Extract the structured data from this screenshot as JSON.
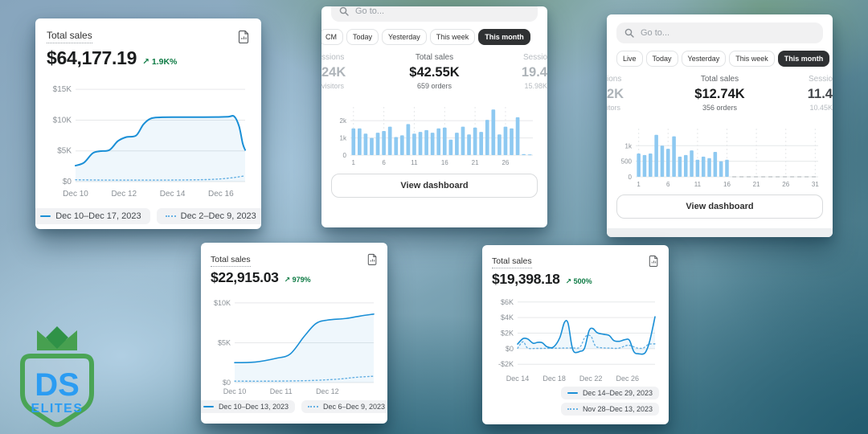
{
  "palette": {
    "line": "#1a8fd6",
    "dot": "#69b2e4",
    "bar": "#8ec9f1",
    "fill": "rgba(26,144,216,0.07)",
    "grid": "#e6e8ea",
    "zero_dash": "#c4c8cc",
    "green": "#0c7a43",
    "tab_active_bg": "#2f3133"
  },
  "logo": {
    "top": "DS",
    "bottom": "ELITES"
  },
  "cards": {
    "c1": {
      "title": "Total sales",
      "value": "$64,177.19",
      "delta_arrow": "↗",
      "delta": "1.9K%",
      "legend": [
        {
          "style": "solid",
          "label": "Dec 10–Dec 17, 2023"
        },
        {
          "style": "dotted",
          "label": "Dec 2–Dec 9, 2023"
        }
      ],
      "chart": {
        "type": "line",
        "lw": 2,
        "pad": [
          36,
          6,
          6,
          20
        ],
        "xlim": [
          0,
          7
        ],
        "ylim": [
          0,
          16200
        ],
        "yticks": [
          {
            "v": 15000,
            "label": "$15K"
          },
          {
            "v": 10000,
            "label": "$10K"
          },
          {
            "v": 5000,
            "label": "$5K"
          },
          {
            "v": 0,
            "label": "$0"
          }
        ],
        "xticks": [
          {
            "v": 0,
            "label": "Dec 10"
          },
          {
            "v": 2,
            "label": "Dec 12"
          },
          {
            "v": 4,
            "label": "Dec 14"
          },
          {
            "v": 6,
            "label": "Dec 16"
          }
        ],
        "series": [
          {
            "style": "dotted",
            "points": [
              [
                0,
                300
              ],
              [
                1,
                260
              ],
              [
                2,
                250
              ],
              [
                3,
                250
              ],
              [
                4,
                260
              ],
              [
                5,
                300
              ],
              [
                5.6,
                360
              ],
              [
                6.1,
                480
              ],
              [
                6.6,
                700
              ],
              [
                7,
                950
              ]
            ]
          },
          {
            "style": "solid",
            "fill": true,
            "points": [
              [
                0,
                2600
              ],
              [
                0.35,
                3100
              ],
              [
                0.7,
                4600
              ],
              [
                1,
                4950
              ],
              [
                1.4,
                5150
              ],
              [
                1.75,
                6600
              ],
              [
                2.1,
                7250
              ],
              [
                2.5,
                7500
              ],
              [
                2.8,
                9300
              ],
              [
                3.1,
                10250
              ],
              [
                3.5,
                10450
              ],
              [
                4.2,
                10480
              ],
              [
                5,
                10480
              ],
              [
                5.8,
                10500
              ],
              [
                6.3,
                10550
              ],
              [
                6.55,
                10600
              ],
              [
                6.75,
                9000
              ],
              [
                6.9,
                6200
              ],
              [
                7,
                5150
              ]
            ]
          }
        ]
      }
    },
    "c2": {
      "search_placeholder": "Go to...",
      "tabs": [
        {
          "label": "CM"
        },
        {
          "label": "Today"
        },
        {
          "label": "Yesterday"
        },
        {
          "label": "This week"
        },
        {
          "label": "This month",
          "active": true
        }
      ],
      "metrics": {
        "left": {
          "label": "ssions",
          "value": "24K",
          "sub": "visitors"
        },
        "center": {
          "label": "Total sales",
          "value": "$42.55K",
          "sub": "659 orders"
        },
        "right": {
          "label": "Sessio",
          "value": "19.4",
          "sub": "15.98K"
        }
      },
      "button": "View dashboard",
      "chart": {
        "type": "bar",
        "slots": 30,
        "pad": [
          24,
          8,
          6,
          14
        ],
        "ylim": [
          0,
          2800
        ],
        "vgrid": true,
        "yticks": [
          {
            "v": 2000,
            "label": "2k"
          },
          {
            "v": 1000,
            "label": "1k"
          },
          {
            "v": 0,
            "label": "0"
          }
        ],
        "xticks": [
          {
            "v": 1,
            "label": "1"
          },
          {
            "v": 6,
            "label": "6"
          },
          {
            "v": 11,
            "label": "11"
          },
          {
            "v": 16,
            "label": "16"
          },
          {
            "v": 21,
            "label": "21"
          },
          {
            "v": 26,
            "label": "26"
          }
        ],
        "values": [
          1550,
          1550,
          1250,
          1000,
          1300,
          1400,
          1650,
          1050,
          1150,
          1800,
          1250,
          1350,
          1450,
          1300,
          1550,
          1600,
          900,
          1300,
          1650,
          1200,
          1600,
          1350,
          2050,
          2650,
          1200,
          1650,
          1550,
          2200,
          60,
          40
        ]
      }
    },
    "c3": {
      "search_placeholder": "Go to...",
      "tabs": [
        {
          "label": "Live"
        },
        {
          "label": "Today"
        },
        {
          "label": "Yesterday"
        },
        {
          "label": "This week"
        },
        {
          "label": "This month",
          "active": true
        }
      ],
      "metrics": {
        "left": {
          "label": "ions",
          "value": "2K",
          "sub": "itors"
        },
        "center": {
          "label": "Total sales",
          "value": "$12.74K",
          "sub": "356 orders"
        },
        "right": {
          "label": "Sessio",
          "value": "11.4",
          "sub": "10.45K"
        }
      },
      "button": "View dashboard",
      "chart": {
        "type": "bar",
        "slots": 31,
        "pad": [
          24,
          8,
          6,
          14
        ],
        "ylim": [
          0,
          1550
        ],
        "vgrid": true,
        "dash_from": 16.4,
        "yticks": [
          {
            "v": 1000,
            "label": "1k"
          },
          {
            "v": 500,
            "label": "500"
          },
          {
            "v": 0,
            "label": "0"
          }
        ],
        "xticks": [
          {
            "v": 1,
            "label": "1"
          },
          {
            "v": 6,
            "label": "6"
          },
          {
            "v": 11,
            "label": "11"
          },
          {
            "v": 16,
            "label": "16"
          },
          {
            "v": 21,
            "label": "21"
          },
          {
            "v": 26,
            "label": "26"
          },
          {
            "v": 31,
            "label": "31"
          }
        ],
        "values": [
          750,
          700,
          750,
          1350,
          1000,
          900,
          1300,
          650,
          700,
          850,
          550,
          650,
          600,
          800,
          500,
          550,
          null,
          null,
          null,
          null,
          null,
          null,
          null,
          null,
          null,
          null,
          null,
          null,
          null,
          null,
          null
        ]
      }
    },
    "c4": {
      "title": "Total sales",
      "value": "$22,915.03",
      "delta_arrow": "↗",
      "delta": "979%",
      "legend": [
        {
          "style": "solid",
          "label": "Dec 10–Dec 13, 2023"
        },
        {
          "style": "dotted",
          "label": "Dec 6–Dec 9, 2023"
        }
      ],
      "chart": {
        "type": "line",
        "lw": 1.6,
        "pad": [
          30,
          5,
          5,
          16
        ],
        "xlim": [
          0,
          3
        ],
        "ylim": [
          0,
          10800
        ],
        "yticks": [
          {
            "v": 10000,
            "label": "$10K"
          },
          {
            "v": 5000,
            "label": "$5K"
          },
          {
            "v": 0,
            "label": "$0"
          }
        ],
        "xticks": [
          {
            "v": 0,
            "label": "Dec 10"
          },
          {
            "v": 1,
            "label": "Dec 11"
          },
          {
            "v": 2,
            "label": "Dec 12"
          }
        ],
        "series": [
          {
            "style": "dotted",
            "points": [
              [
                0,
                180
              ],
              [
                0.8,
                180
              ],
              [
                1.6,
                250
              ],
              [
                2.2,
                420
              ],
              [
                2.6,
                650
              ],
              [
                3,
                800
              ]
            ]
          },
          {
            "style": "solid",
            "fill": true,
            "points": [
              [
                0,
                2500
              ],
              [
                0.45,
                2580
              ],
              [
                0.9,
                3050
              ],
              [
                1.2,
                3600
              ],
              [
                1.5,
                5800
              ],
              [
                1.75,
                7400
              ],
              [
                2,
                7850
              ],
              [
                2.4,
                8050
              ],
              [
                2.7,
                8350
              ],
              [
                3,
                8600
              ]
            ]
          }
        ]
      }
    },
    "c5": {
      "title": "Total sales",
      "value": "$19,398.18",
      "delta_arrow": "↗",
      "delta": "500%",
      "legend": [
        {
          "style": "solid",
          "label": "Dec 14–Dec 29, 2023"
        },
        {
          "style": "dotted",
          "label": "Nov 28–Dec 13, 2023"
        }
      ],
      "chart": {
        "type": "line",
        "lw": 1.6,
        "pad": [
          32,
          5,
          5,
          16
        ],
        "xlim": [
          0,
          15
        ],
        "ylim": [
          -2700,
          6700
        ],
        "yticks": [
          {
            "v": 6000,
            "label": "$6K"
          },
          {
            "v": 4000,
            "label": "$4K"
          },
          {
            "v": 2000,
            "label": "$2K"
          },
          {
            "v": 0,
            "label": "$0"
          },
          {
            "v": -2000,
            "label": "-$2K"
          }
        ],
        "xticks": [
          {
            "v": 0,
            "label": "Dec 14"
          },
          {
            "v": 4,
            "label": "Dec 18"
          },
          {
            "v": 8,
            "label": "Dec 22"
          },
          {
            "v": 12,
            "label": "Dec 26"
          }
        ],
        "series": [
          {
            "style": "dotted",
            "points": [
              [
                0,
                60
              ],
              [
                0.6,
                900
              ],
              [
                1.1,
                80
              ],
              [
                2,
                40
              ],
              [
                3,
                40
              ],
              [
                4,
                60
              ],
              [
                5,
                80
              ],
              [
                6,
                100
              ],
              [
                6.8,
                200
              ],
              [
                7.4,
                1550
              ],
              [
                8,
                1600
              ],
              [
                8.5,
                350
              ],
              [
                9.2,
                120
              ],
              [
                10,
                80
              ],
              [
                11,
                60
              ],
              [
                11.9,
                420
              ],
              [
                12.4,
                380
              ],
              [
                13,
                100
              ],
              [
                13.7,
                80
              ],
              [
                14.3,
                560
              ],
              [
                15,
                620
              ]
            ]
          },
          {
            "style": "solid",
            "fill": true,
            "points": [
              [
                0,
                600
              ],
              [
                0.6,
                1300
              ],
              [
                1.1,
                1250
              ],
              [
                1.7,
                700
              ],
              [
                2.2,
                820
              ],
              [
                2.7,
                760
              ],
              [
                3.2,
                260
              ],
              [
                3.9,
                200
              ],
              [
                4.6,
                1400
              ],
              [
                5.1,
                3350
              ],
              [
                5.5,
                3300
              ],
              [
                5.9,
                500
              ],
              [
                6.2,
                -450
              ],
              [
                6.8,
                -350
              ],
              [
                7.3,
                50
              ],
              [
                7.8,
                2300
              ],
              [
                8.2,
                2600
              ],
              [
                8.7,
                2050
              ],
              [
                9.4,
                1850
              ],
              [
                10,
                1700
              ],
              [
                10.5,
                1050
              ],
              [
                11.1,
                950
              ],
              [
                11.7,
                1150
              ],
              [
                12.2,
                1100
              ],
              [
                12.7,
                -400
              ],
              [
                13.2,
                -650
              ],
              [
                13.9,
                -550
              ],
              [
                14.4,
                900
              ],
              [
                15,
                4100
              ]
            ]
          }
        ]
      }
    }
  }
}
